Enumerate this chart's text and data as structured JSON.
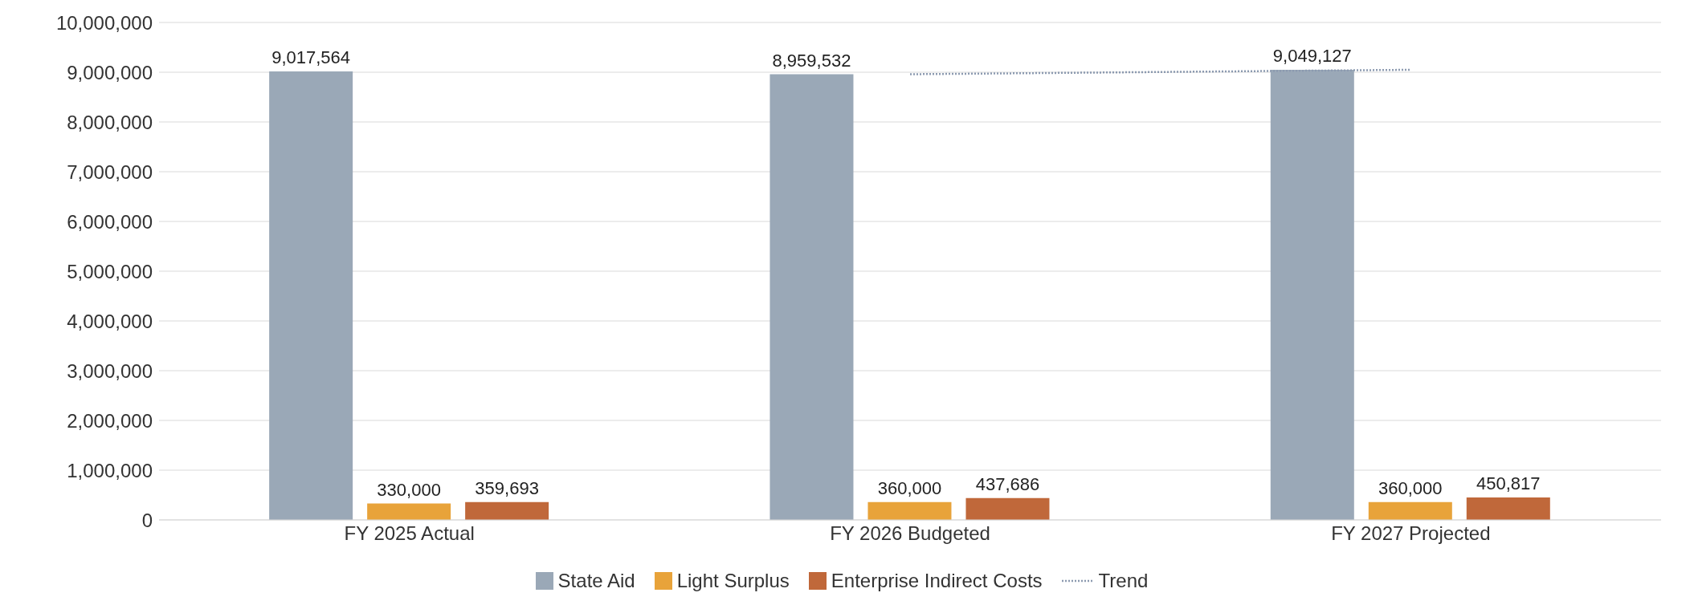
{
  "chart_data": {
    "type": "bar",
    "categories": [
      "FY 2025 Actual",
      "FY 2026 Budgeted",
      "FY 2027 Projected"
    ],
    "series": [
      {
        "name": "State Aid",
        "color": "#9aa8b7",
        "values": [
          9017564,
          8959532,
          9049127
        ],
        "value_labels": [
          "9,017,564",
          "8,959,532",
          "9,049,127"
        ]
      },
      {
        "name": "Light Surplus",
        "color": "#e8a33a",
        "values": [
          330000,
          360000,
          360000
        ],
        "value_labels": [
          "330,000",
          "360,000",
          "360,000"
        ]
      },
      {
        "name": "Enterprise Indirect Costs",
        "color": "#c0683a",
        "values": [
          359693,
          437686,
          450817
        ],
        "value_labels": [
          "359,693",
          "437,686",
          "450,817"
        ]
      },
      {
        "name": "Trend",
        "type": "line",
        "color": "#8c9ab0",
        "line_style": "dotted",
        "marker": "none",
        "values": [
          null,
          8959532,
          9049127
        ]
      }
    ],
    "ylim": [
      0,
      10000000
    ],
    "yticks": [
      0,
      {
        "value": 1000000,
        "label": "1,000,000"
      },
      {
        "value": 2000000,
        "label": "2,000,000"
      },
      {
        "value": 3000000,
        "label": "3,000,000"
      },
      {
        "value": 4000000,
        "label": "4,000,000"
      },
      {
        "value": 5000000,
        "label": "5,000,000"
      },
      {
        "value": 6000000,
        "label": "6,000,000"
      },
      {
        "value": 7000000,
        "label": "7,000,000"
      },
      {
        "value": 8000000,
        "label": "8,000,000"
      },
      {
        "value": 9000000,
        "label": "9,000,000"
      },
      {
        "value": 10000000,
        "label": "10,000,000"
      }
    ],
    "grid": "y",
    "legend": "bottom"
  }
}
